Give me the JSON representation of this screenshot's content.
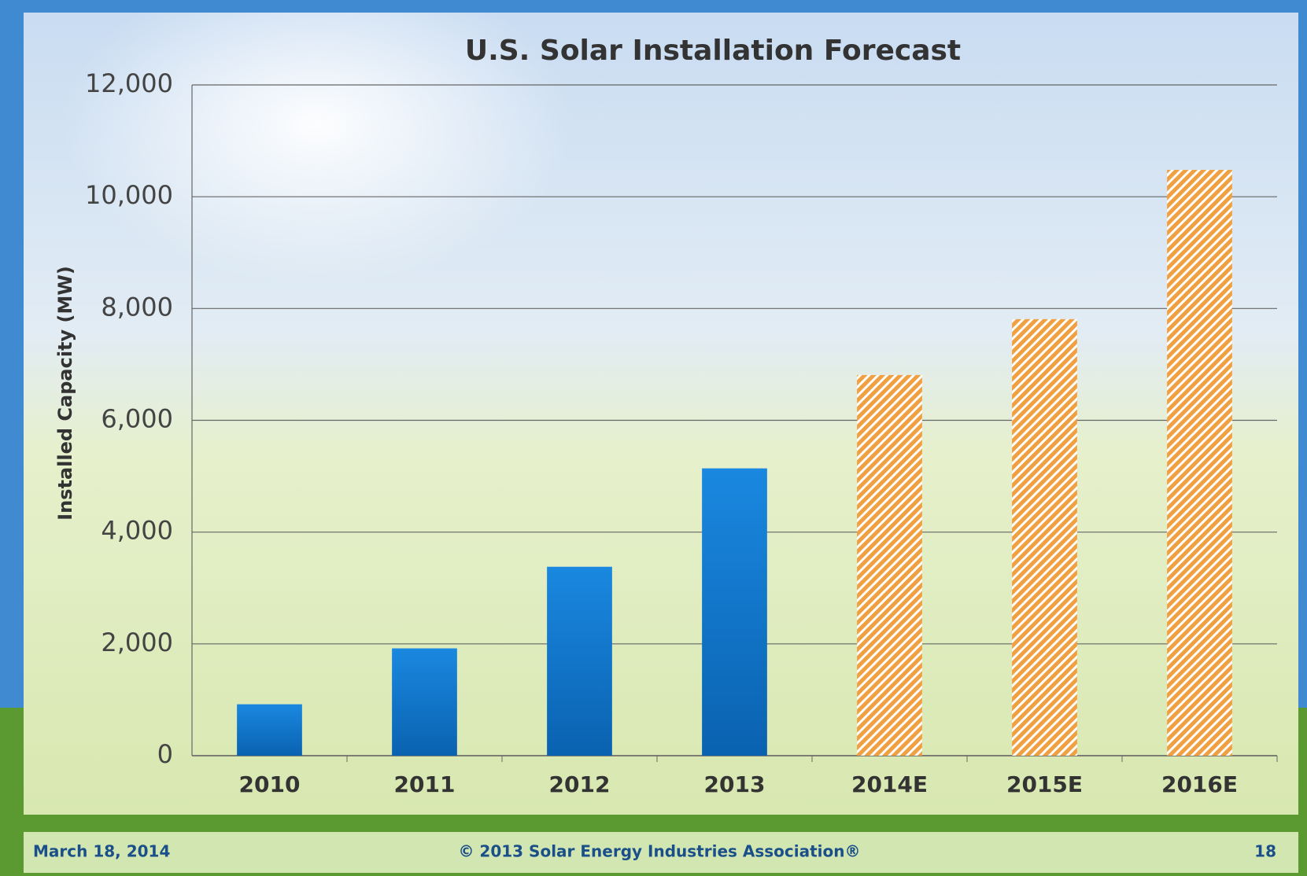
{
  "chart_data": {
    "type": "bar",
    "title": "U.S. Solar Installation Forecast",
    "y_label": "Installed Capacity (MW)",
    "categories": [
      "2010",
      "2011",
      "2012",
      "2013",
      "2014E",
      "2015E",
      "2016E"
    ],
    "values": [
      920,
      1920,
      3380,
      5140,
      6810,
      7810,
      10480
    ],
    "colors": [
      "#0c78d2",
      "#0c78d2",
      "#0c78d2",
      "#0c78d2",
      "#f0a040",
      "#f0a040",
      "#f0a040"
    ],
    "hatched": [
      false,
      false,
      false,
      false,
      true,
      true,
      true
    ],
    "ylim": [
      0,
      12000
    ],
    "yticks": [
      0,
      {
        "value": 2000,
        "label": "2,000"
      },
      {
        "value": 4000,
        "label": "4,000"
      },
      {
        "value": 6000,
        "label": "6,000"
      },
      {
        "value": 8000,
        "label": "8,000"
      },
      {
        "value": 10000,
        "label": "10,000"
      },
      {
        "value": 12000,
        "label": "12,000"
      }
    ],
    "grid": true
  },
  "footer": {
    "date": "March 18, 2014",
    "copyright": "© 2013 Solar Energy Industries Association®",
    "page": "18"
  }
}
